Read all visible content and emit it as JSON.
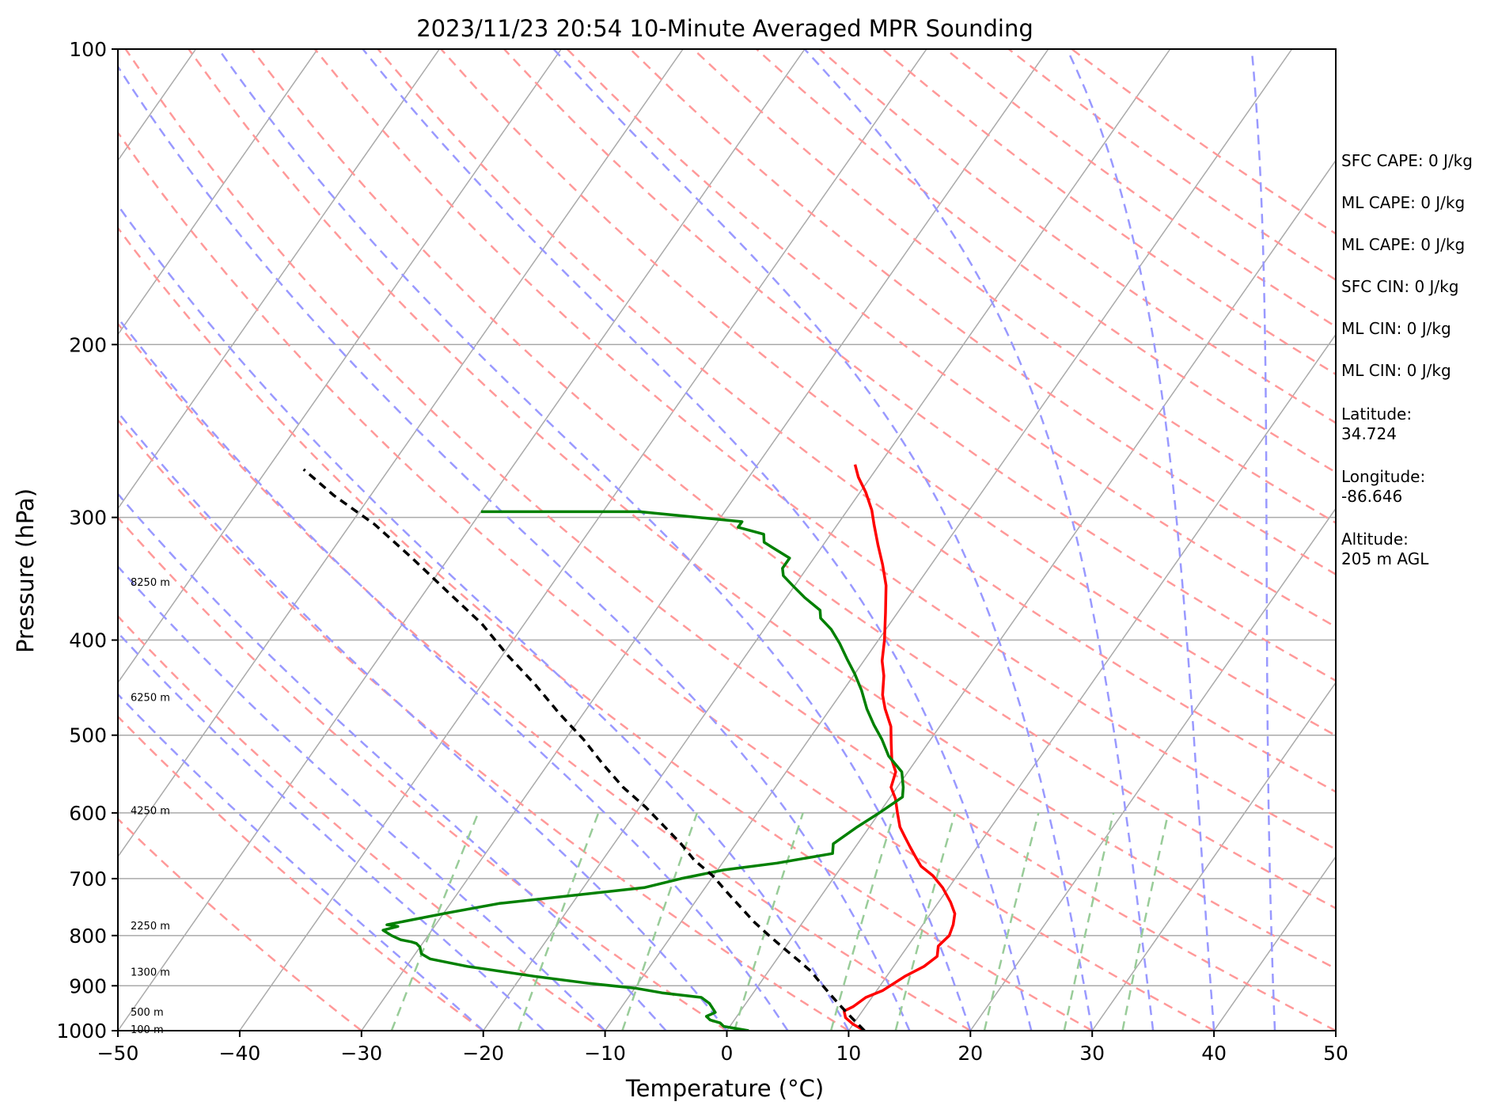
{
  "chart_data": {
    "type": "line",
    "title": "2023/11/23 20:54 10-Minute Averaged MPR Sounding",
    "xlabel": "Temperature (°C)",
    "ylabel": "Pressure (hPa)",
    "xlim": [
      -50,
      50
    ],
    "ylim": [
      1000,
      100
    ],
    "y_scale": "log",
    "x_ticks": [
      "−50",
      "−40",
      "−30",
      "−20",
      "−10",
      "0",
      "10",
      "20",
      "30",
      "40",
      "50"
    ],
    "y_ticks": [
      "100",
      "200",
      "300",
      "400",
      "500",
      "600",
      "700",
      "800",
      "900",
      "1000"
    ],
    "grid": true,
    "skew_note": "isotherms skewed on a Skew-T log-p diagram",
    "series": [
      {
        "color": "#ff0000",
        "points": [
          [
            11.3,
            1000
          ],
          [
            10.0,
            985
          ],
          [
            9.0,
            970
          ],
          [
            8.5,
            955
          ],
          [
            9.0,
            945
          ],
          [
            9.5,
            925
          ],
          [
            10.5,
            910
          ],
          [
            11.5,
            880
          ],
          [
            12.5,
            860
          ],
          [
            13.0,
            840
          ],
          [
            12.5,
            820
          ],
          [
            12.8,
            800
          ],
          [
            12.5,
            780
          ],
          [
            12.0,
            760
          ],
          [
            11.0,
            740
          ],
          [
            9.5,
            715
          ],
          [
            8.0,
            695
          ],
          [
            6.5,
            680
          ],
          [
            5.5,
            665
          ],
          [
            4.5,
            650
          ],
          [
            3.5,
            635
          ],
          [
            2.5,
            620
          ],
          [
            1.5,
            600
          ],
          [
            0.5,
            580
          ],
          [
            -0.5,
            565
          ],
          [
            -1.0,
            545
          ],
          [
            -2.0,
            530
          ],
          [
            -3.0,
            510
          ],
          [
            -4.0,
            490
          ],
          [
            -5.5,
            470
          ],
          [
            -6.5,
            455
          ],
          [
            -7.5,
            435
          ],
          [
            -8.5,
            420
          ],
          [
            -9.5,
            400
          ],
          [
            -11.0,
            375
          ],
          [
            -12.5,
            352
          ],
          [
            -14.0,
            335
          ],
          [
            -15.5,
            320
          ],
          [
            -17.0,
            305
          ],
          [
            -18.0,
            295
          ],
          [
            -19.5,
            283
          ],
          [
            -21.0,
            273
          ],
          [
            -22.0,
            265
          ]
        ]
      },
      {
        "color": "#008000",
        "points": [
          [
            1.8,
            1000
          ],
          [
            -0.5,
            990
          ],
          [
            -1.0,
            982
          ],
          [
            -2.0,
            975
          ],
          [
            -2.5,
            967
          ],
          [
            -2.0,
            958
          ],
          [
            -2.5,
            948
          ],
          [
            -3.0,
            938
          ],
          [
            -4.0,
            925
          ],
          [
            -7.5,
            915
          ],
          [
            -10.0,
            905
          ],
          [
            -14.0,
            895
          ],
          [
            -19.0,
            880
          ],
          [
            -25.0,
            860
          ],
          [
            -28.5,
            845
          ],
          [
            -29.5,
            835
          ],
          [
            -30.0,
            822
          ],
          [
            -30.5,
            815
          ],
          [
            -31.0,
            812
          ],
          [
            -32.0,
            808
          ],
          [
            -33.0,
            800
          ],
          [
            -34.0,
            790
          ],
          [
            -33.0,
            783
          ],
          [
            -34.0,
            780
          ],
          [
            -30.0,
            760
          ],
          [
            -26.0,
            742
          ],
          [
            -15.0,
            715
          ],
          [
            -12.5,
            700
          ],
          [
            -9.5,
            686
          ],
          [
            -5.5,
            675
          ],
          [
            -1.5,
            660
          ],
          [
            -2.0,
            645
          ],
          [
            -1.0,
            620
          ],
          [
            0.0,
            600
          ],
          [
            1.0,
            578
          ],
          [
            0.5,
            565
          ],
          [
            -0.5,
            545
          ],
          [
            -2.5,
            525
          ],
          [
            -4.0,
            505
          ],
          [
            -5.5,
            488
          ],
          [
            -7.0,
            470
          ],
          [
            -8.5,
            450
          ],
          [
            -10.0,
            433
          ],
          [
            -11.5,
            418
          ],
          [
            -13.0,
            403
          ],
          [
            -14.5,
            390
          ],
          [
            -16.0,
            380
          ],
          [
            -16.5,
            373
          ],
          [
            -18.5,
            362
          ],
          [
            -20.0,
            353
          ],
          [
            -21.5,
            344
          ],
          [
            -22.0,
            338
          ],
          [
            -22.0,
            330
          ],
          [
            -24.0,
            322
          ],
          [
            -25.0,
            318
          ],
          [
            -25.5,
            312
          ],
          [
            -28.0,
            307
          ],
          [
            -28.0,
            303
          ],
          [
            -37.0,
            296
          ],
          [
            -50.0,
            296
          ]
        ]
      },
      {
        "color": "#000000",
        "dashed": true,
        "points": [
          [
            11.3,
            1000
          ],
          [
            9.5,
            970
          ],
          [
            8.0,
            945
          ],
          [
            6.5,
            920
          ],
          [
            5.0,
            895
          ],
          [
            3.5,
            870
          ],
          [
            2.0,
            850
          ],
          [
            0.0,
            825
          ],
          [
            -2.0,
            800
          ],
          [
            -4.0,
            775
          ],
          [
            -6.0,
            748
          ],
          [
            -8.0,
            722
          ],
          [
            -10.0,
            696
          ],
          [
            -12.5,
            670
          ],
          [
            -14.5,
            645
          ],
          [
            -17.0,
            618
          ],
          [
            -19.5,
            592
          ],
          [
            -22.5,
            565
          ],
          [
            -25.5,
            535
          ],
          [
            -28.5,
            505
          ],
          [
            -32.0,
            475
          ],
          [
            -35.5,
            445
          ],
          [
            -39.5,
            415
          ],
          [
            -43.5,
            385
          ],
          [
            -48.0,
            358
          ],
          [
            -53.0,
            330
          ],
          [
            -58.0,
            305
          ],
          [
            -63.0,
            285
          ],
          [
            -67.0,
            268
          ]
        ]
      }
    ],
    "height_labels": [
      "8250 m",
      "6250 m",
      "4250 m",
      "2250 m",
      "1300 m",
      "500 m",
      "100 m"
    ],
    "height_label_pressures": [
      349,
      457,
      596,
      781,
      871,
      956,
      996
    ],
    "indices": [
      "SFC CAPE: 0 J/kg",
      "ML CAPE: 0 J/kg",
      "ML CAPE: 0 J/kg",
      "SFC CIN: 0 J/kg",
      "ML CIN: 0 J/kg",
      "ML CIN: 0 J/kg"
    ],
    "location": [
      {
        "label": "Latitude:",
        "value": "34.724"
      },
      {
        "label": "Longitude:",
        "value": "-86.646"
      },
      {
        "label": "Altitude:",
        "value": "205 m AGL"
      }
    ],
    "colors": {
      "temperature": "#ff0000",
      "dewpoint": "#008000",
      "parcel": "#000000",
      "isotherm": "#aaaaaa",
      "dry_adiabat": "#ff9999",
      "moist_adiabat": "#9999ff",
      "mixing_ratio": "#99cc99"
    }
  }
}
